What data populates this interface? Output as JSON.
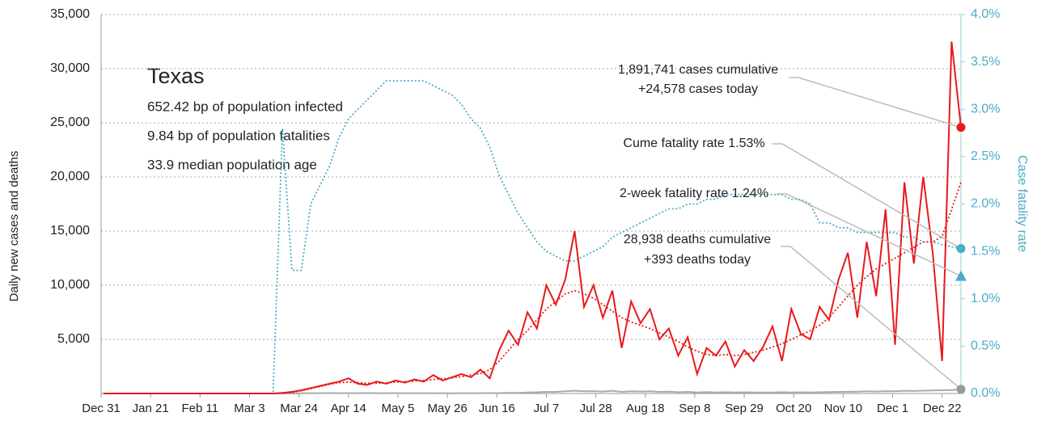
{
  "chart_data": {
    "type": "line",
    "ylabel": "Daily new cases and deaths",
    "y2label": "Case fatality rate",
    "xlim": [
      0,
      365
    ],
    "xticks": [
      {
        "value": 0,
        "label": "Dec 31"
      },
      {
        "value": 21,
        "label": "Jan 21"
      },
      {
        "value": 42,
        "label": "Feb 11"
      },
      {
        "value": 63,
        "label": "Mar 3"
      },
      {
        "value": 84,
        "label": "Mar 24"
      },
      {
        "value": 105,
        "label": "Apr 14"
      },
      {
        "value": 126,
        "label": "May 5"
      },
      {
        "value": 147,
        "label": "May 26"
      },
      {
        "value": 168,
        "label": "Jun 16"
      },
      {
        "value": 189,
        "label": "Jul 7"
      },
      {
        "value": 210,
        "label": "Jul 28"
      },
      {
        "value": 231,
        "label": "Aug 18"
      },
      {
        "value": 252,
        "label": "Sep 8"
      },
      {
        "value": 273,
        "label": "Sep 29"
      },
      {
        "value": 294,
        "label": "Oct 20"
      },
      {
        "value": 315,
        "label": "Nov 10"
      },
      {
        "value": 336,
        "label": "Dec 1"
      },
      {
        "value": 357,
        "label": "Dec 22"
      }
    ],
    "ylim": [
      0,
      35000
    ],
    "yticks": [
      {
        "value": 5000,
        "label": "5,000"
      },
      {
        "value": 10000,
        "label": "10,000"
      },
      {
        "value": 15000,
        "label": "15,000"
      },
      {
        "value": 20000,
        "label": "20,000"
      },
      {
        "value": 25000,
        "label": "25,000"
      },
      {
        "value": 30000,
        "label": "30,000"
      },
      {
        "value": 35000,
        "label": "35,000"
      }
    ],
    "y2lim": [
      0,
      4
    ],
    "y2ticks": [
      {
        "value": 0,
        "label": "0.0%"
      },
      {
        "value": 0.5,
        "label": "0.5%"
      },
      {
        "value": 1,
        "label": "1.0%"
      },
      {
        "value": 1.5,
        "label": "1.5%"
      },
      {
        "value": 2,
        "label": "2.0%"
      },
      {
        "value": 2.5,
        "label": "2.5%"
      },
      {
        "value": 3,
        "label": "3.0%"
      },
      {
        "value": 3.5,
        "label": "3.5%"
      },
      {
        "value": 4,
        "label": "4.0%"
      }
    ],
    "grid": true,
    "x": [
      1,
      5,
      9,
      13,
      17,
      21,
      25,
      29,
      33,
      37,
      41,
      45,
      49,
      53,
      57,
      61,
      65,
      69,
      73,
      77,
      81,
      85,
      89,
      93,
      97,
      101,
      105,
      109,
      113,
      117,
      121,
      125,
      129,
      133,
      137,
      141,
      145,
      149,
      153,
      157,
      161,
      165,
      169,
      173,
      177,
      181,
      185,
      189,
      193,
      197,
      201,
      205,
      209,
      213,
      217,
      221,
      225,
      229,
      233,
      237,
      241,
      245,
      249,
      253,
      257,
      261,
      265,
      269,
      273,
      277,
      281,
      285,
      289,
      293,
      297,
      301,
      305,
      309,
      313,
      317,
      321,
      325,
      329,
      333,
      337,
      341,
      345,
      349,
      353,
      357,
      361,
      365
    ],
    "series": [
      {
        "color": "#4bacc6",
        "axis": "y2",
        "style": "dotted",
        "values": [
          0,
          0,
          0,
          0,
          0,
          0,
          0,
          0,
          0,
          0,
          0,
          0,
          0,
          0,
          0,
          0,
          0,
          0,
          0,
          2.8,
          1.3,
          1.3,
          2.0,
          2.2,
          2.4,
          2.7,
          2.9,
          3.0,
          3.1,
          3.2,
          3.3,
          3.3,
          3.3,
          3.3,
          3.3,
          3.25,
          3.2,
          3.15,
          3.05,
          2.9,
          2.8,
          2.6,
          2.3,
          2.1,
          1.9,
          1.75,
          1.6,
          1.5,
          1.45,
          1.4,
          1.4,
          1.45,
          1.5,
          1.55,
          1.65,
          1.7,
          1.75,
          1.8,
          1.85,
          1.9,
          1.95,
          1.95,
          2.0,
          2.0,
          2.05,
          2.05,
          2.1,
          2.1,
          2.1,
          2.1,
          2.1,
          2.1,
          2.1,
          2.05,
          2.05,
          2.0,
          1.8,
          1.8,
          1.75,
          1.75,
          1.7,
          1.7,
          1.7,
          1.7,
          1.7,
          1.65,
          1.65,
          1.6,
          1.6,
          1.57,
          1.55,
          1.53
        ]
      },
      {
        "color": "#aaaaaa",
        "axis": "y",
        "style": "solid",
        "values": [
          0,
          0,
          0,
          0,
          0,
          0,
          0,
          0,
          0,
          0,
          0,
          0,
          0,
          0,
          0,
          0,
          0,
          0,
          0,
          0,
          0,
          20,
          30,
          30,
          40,
          30,
          40,
          30,
          40,
          30,
          30,
          40,
          30,
          30,
          30,
          20,
          30,
          20,
          30,
          30,
          30,
          40,
          40,
          50,
          60,
          90,
          110,
          150,
          150,
          200,
          250,
          200,
          220,
          180,
          250,
          150,
          200,
          180,
          200,
          150,
          170,
          120,
          150,
          100,
          130,
          100,
          120,
          90,
          110,
          100,
          100,
          90,
          120,
          100,
          110,
          100,
          120,
          130,
          150,
          160,
          170,
          200,
          180,
          220,
          200,
          250,
          230,
          260,
          280,
          300,
          320,
          393
        ]
      },
      {
        "color": "#e8191c",
        "axis": "y",
        "style": "dotted",
        "values": [
          0,
          0,
          0,
          0,
          0,
          0,
          0,
          0,
          0,
          0,
          0,
          0,
          0,
          0,
          0,
          0,
          0,
          0,
          0,
          20,
          100,
          250,
          450,
          650,
          850,
          1000,
          1050,
          1000,
          950,
          950,
          1000,
          1050,
          1100,
          1150,
          1200,
          1300,
          1350,
          1450,
          1550,
          1700,
          1850,
          2200,
          3000,
          4000,
          5000,
          5800,
          6800,
          7800,
          8500,
          9200,
          9500,
          9200,
          8800,
          8200,
          7600,
          7000,
          6600,
          6300,
          6000,
          5600,
          5200,
          4800,
          4300,
          3900,
          3600,
          3500,
          3600,
          3500,
          3600,
          3800,
          4000,
          4300,
          4600,
          5000,
          5400,
          5800,
          6300,
          7000,
          8000,
          9000,
          10000,
          10800,
          11500,
          12000,
          12500,
          13000,
          13500,
          14000,
          14000,
          14500,
          17000,
          19500
        ]
      },
      {
        "color": "#e8191c",
        "axis": "y",
        "style": "solid",
        "values": [
          0,
          0,
          0,
          0,
          0,
          0,
          0,
          0,
          0,
          0,
          0,
          0,
          0,
          0,
          0,
          0,
          0,
          0,
          0,
          50,
          150,
          300,
          500,
          700,
          900,
          1100,
          1400,
          900,
          800,
          1100,
          900,
          1200,
          1000,
          1300,
          1100,
          1700,
          1200,
          1500,
          1800,
          1500,
          2200,
          1400,
          4000,
          5800,
          4500,
          7500,
          6000,
          10000,
          8200,
          10500,
          15000,
          8000,
          10000,
          7000,
          9500,
          4200,
          8500,
          6500,
          7800,
          5000,
          6000,
          3500,
          5200,
          1800,
          4200,
          3500,
          4800,
          2500,
          4000,
          3000,
          4300,
          6200,
          3000,
          7800,
          5500,
          5000,
          8000,
          6800,
          10500,
          13000,
          7000,
          14000,
          9000,
          17000,
          4500,
          19500,
          12000,
          20000,
          13000,
          3000,
          32500,
          24578
        ]
      }
    ],
    "info": {
      "title": "Texas",
      "lines": [
        "652.42 bp of population infected",
        "9.84 bp of population fatalities",
        "33.9 median population age"
      ]
    },
    "annotations": [
      {
        "lines": [
          "1,891,741 cases cumulative",
          "+24,578 cases today"
        ],
        "x": 365,
        "value": 24578,
        "axis": "y",
        "marker": "circle",
        "color": "#e8191c"
      },
      {
        "lines": [
          "Cume fatality rate 1.53%"
        ],
        "x": 365,
        "value": 1.53,
        "axis": "y2",
        "marker": "circle",
        "color": "#4bacc6"
      },
      {
        "lines": [
          "2-week fatality rate 1.24%"
        ],
        "x": 365,
        "value": 1.24,
        "axis": "y2",
        "marker": "triangle",
        "color": "#4bacc6"
      },
      {
        "lines": [
          "28,938 deaths cumulative",
          "+393 deaths today"
        ],
        "x": 365,
        "value": 393,
        "axis": "y",
        "marker": "circle",
        "color": "#999999"
      }
    ]
  }
}
